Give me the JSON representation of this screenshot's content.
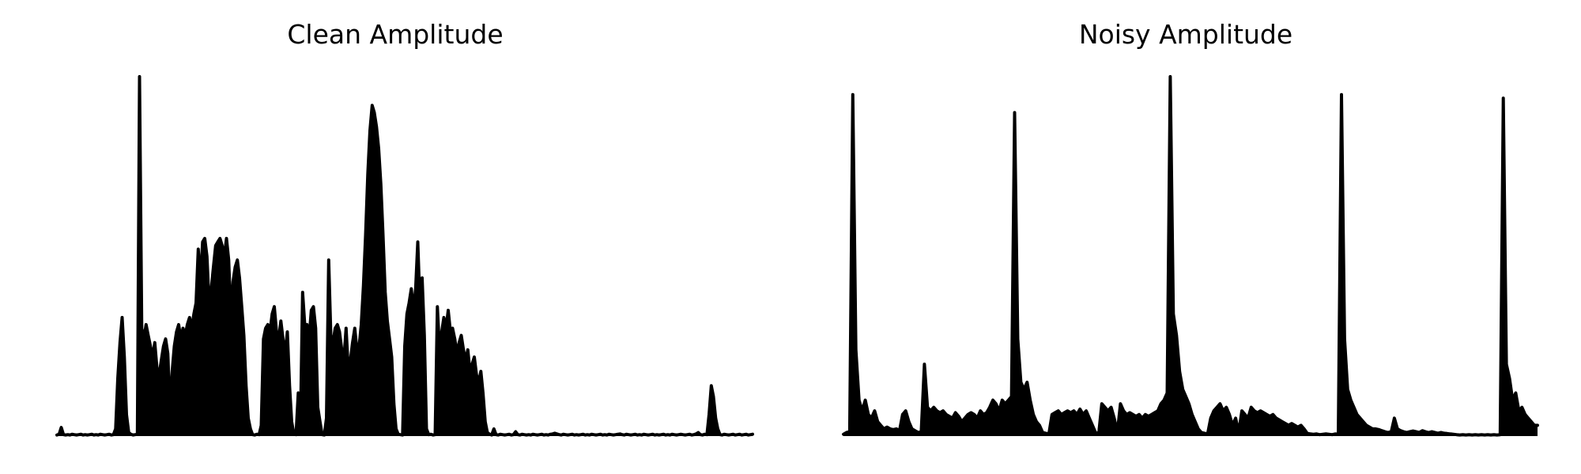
{
  "chart_data": [
    {
      "type": "line",
      "title": "Clean Amplitude",
      "xlabel": "",
      "ylabel": "",
      "axes_visible": false,
      "grid": false,
      "color": "#000000",
      "x_range": [
        0,
        340
      ],
      "ylim": [
        0,
        1.0
      ],
      "series": [
        {
          "name": "",
          "values": [
            0.003,
            0.005,
            0.024,
            0.004,
            0.003,
            0.004,
            0.003,
            0.005,
            0.004,
            0.003,
            0.004,
            0.005,
            0.003,
            0.004,
            0.003,
            0.004,
            0.005,
            0.003,
            0.004,
            0.003,
            0.005,
            0.004,
            0.003,
            0.004,
            0.005,
            0.003,
            0.004,
            0.02,
            0.16,
            0.26,
            0.33,
            0.22,
            0.06,
            0.01,
            0.005,
            0.003,
            0.004,
            0.005,
            1.0,
            0.3,
            0.27,
            0.31,
            0.28,
            0.25,
            0.22,
            0.26,
            0.19,
            0.17,
            0.21,
            0.25,
            0.27,
            0.23,
            0.07,
            0.18,
            0.25,
            0.29,
            0.31,
            0.27,
            0.3,
            0.28,
            0.31,
            0.33,
            0.3,
            0.34,
            0.37,
            0.52,
            0.43,
            0.54,
            0.55,
            0.5,
            0.37,
            0.41,
            0.47,
            0.53,
            0.54,
            0.55,
            0.53,
            0.5,
            0.55,
            0.49,
            0.33,
            0.43,
            0.47,
            0.49,
            0.44,
            0.36,
            0.28,
            0.14,
            0.05,
            0.02,
            0.004,
            0.003,
            0.005,
            0.004,
            0.03,
            0.27,
            0.3,
            0.31,
            0.29,
            0.34,
            0.36,
            0.29,
            0.27,
            0.32,
            0.27,
            0.23,
            0.29,
            0.14,
            0.04,
            0.005,
            0.004,
            0.12,
            0.02,
            0.4,
            0.31,
            0.31,
            0.27,
            0.35,
            0.36,
            0.3,
            0.08,
            0.04,
            0.004,
            0.003,
            0.05,
            0.49,
            0.28,
            0.26,
            0.3,
            0.31,
            0.29,
            0.24,
            0.21,
            0.3,
            0.19,
            0.21,
            0.26,
            0.3,
            0.24,
            0.25,
            0.31,
            0.42,
            0.56,
            0.73,
            0.85,
            0.92,
            0.9,
            0.86,
            0.8,
            0.7,
            0.56,
            0.4,
            0.32,
            0.27,
            0.22,
            0.09,
            0.02,
            0.005,
            0.004,
            0.003,
            0.25,
            0.34,
            0.37,
            0.41,
            0.35,
            0.41,
            0.54,
            0.36,
            0.44,
            0.28,
            0.02,
            0.004,
            0.005,
            0.003,
            0.004,
            0.36,
            0.24,
            0.29,
            0.33,
            0.3,
            0.35,
            0.29,
            0.3,
            0.27,
            0.23,
            0.26,
            0.28,
            0.24,
            0.21,
            0.24,
            0.18,
            0.2,
            0.22,
            0.17,
            0.15,
            0.18,
            0.12,
            0.04,
            0.01,
            0.005,
            0.003,
            0.02,
            0.004,
            0.003,
            0.005,
            0.004,
            0.003,
            0.004,
            0.005,
            0.003,
            0.004,
            0.012,
            0.004,
            0.003,
            0.005,
            0.004,
            0.003,
            0.004,
            0.003,
            0.005,
            0.004,
            0.003,
            0.004,
            0.005,
            0.003,
            0.004,
            0.003,
            0.005,
            0.006,
            0.008,
            0.006,
            0.004,
            0.003,
            0.005,
            0.004,
            0.003,
            0.004,
            0.005,
            0.003,
            0.004,
            0.003,
            0.004,
            0.005,
            0.003,
            0.004,
            0.003,
            0.005,
            0.004,
            0.003,
            0.004,
            0.005,
            0.003,
            0.004,
            0.003,
            0.005,
            0.004,
            0.003,
            0.004,
            0.005,
            0.006,
            0.004,
            0.003,
            0.005,
            0.004,
            0.003,
            0.004,
            0.005,
            0.003,
            0.004,
            0.003,
            0.005,
            0.004,
            0.003,
            0.004,
            0.005,
            0.003,
            0.004,
            0.003,
            0.004,
            0.005,
            0.003,
            0.004,
            0.003,
            0.005,
            0.004,
            0.003,
            0.004,
            0.005,
            0.004,
            0.003,
            0.004,
            0.005,
            0.003,
            0.004,
            0.006,
            0.01,
            0.004,
            0.003,
            0.005,
            0.004,
            0.06,
            0.14,
            0.11,
            0.05,
            0.02,
            0.004,
            0.003,
            0.005,
            0.004,
            0.003,
            0.004,
            0.005,
            0.003,
            0.004,
            0.005,
            0.003,
            0.004,
            0.005,
            0.003,
            0.004,
            0.005
          ]
        }
      ]
    },
    {
      "type": "line",
      "title": "Noisy Amplitude",
      "xlabel": "",
      "ylabel": "",
      "axes_visible": false,
      "grid": false,
      "color": "#000000",
      "x_range": [
        0,
        340
      ],
      "ylim": [
        0,
        1.0
      ],
      "series": [
        {
          "name": "",
          "values": [
            0.005,
            0.01,
            0.012,
            0.95,
            0.24,
            0.1,
            0.07,
            0.1,
            0.06,
            0.05,
            0.07,
            0.04,
            0.03,
            0.02,
            0.025,
            0.02,
            0.018,
            0.02,
            0.015,
            0.06,
            0.07,
            0.04,
            0.02,
            0.015,
            0.01,
            0.012,
            0.2,
            0.08,
            0.07,
            0.08,
            0.07,
            0.065,
            0.07,
            0.06,
            0.055,
            0.05,
            0.065,
            0.055,
            0.04,
            0.05,
            0.06,
            0.065,
            0.06,
            0.05,
            0.07,
            0.06,
            0.065,
            0.08,
            0.1,
            0.09,
            0.07,
            0.1,
            0.09,
            0.1,
            0.11,
            0.9,
            0.27,
            0.15,
            0.13,
            0.15,
            0.1,
            0.06,
            0.04,
            0.03,
            0.01,
            0.008,
            0.006,
            0.06,
            0.065,
            0.07,
            0.06,
            0.065,
            0.07,
            0.065,
            0.07,
            0.06,
            0.075,
            0.06,
            0.07,
            0.05,
            0.03,
            0.01,
            0.006,
            0.09,
            0.08,
            0.07,
            0.08,
            0.05,
            0.01,
            0.09,
            0.07,
            0.06,
            0.065,
            0.06,
            0.055,
            0.06,
            0.05,
            0.06,
            0.055,
            0.06,
            0.065,
            0.07,
            0.09,
            0.1,
            0.12,
            1.0,
            0.34,
            0.28,
            0.18,
            0.13,
            0.11,
            0.09,
            0.06,
            0.04,
            0.02,
            0.01,
            0.008,
            0.006,
            0.05,
            0.07,
            0.08,
            0.09,
            0.07,
            0.08,
            0.06,
            0.03,
            0.05,
            0.01,
            0.07,
            0.06,
            0.05,
            0.08,
            0.07,
            0.065,
            0.07,
            0.065,
            0.06,
            0.055,
            0.06,
            0.05,
            0.045,
            0.04,
            0.035,
            0.03,
            0.035,
            0.03,
            0.025,
            0.03,
            0.02,
            0.008,
            0.006,
            0.005,
            0.006,
            0.004,
            0.005,
            0.006,
            0.005,
            0.004,
            0.006,
            0.005,
            0.95,
            0.27,
            0.13,
            0.1,
            0.08,
            0.06,
            0.05,
            0.04,
            0.03,
            0.025,
            0.02,
            0.02,
            0.018,
            0.015,
            0.012,
            0.01,
            0.012,
            0.05,
            0.02,
            0.015,
            0.012,
            0.01,
            0.012,
            0.014,
            0.012,
            0.01,
            0.015,
            0.012,
            0.01,
            0.012,
            0.01,
            0.008,
            0.01,
            0.008,
            0.007,
            0.006,
            0.005,
            0.004,
            0.003,
            0.004,
            0.003,
            0.004,
            0.003,
            0.004,
            0.003,
            0.004,
            0.003,
            0.004,
            0.003,
            0.004,
            0.003,
            0.004,
            0.94,
            0.2,
            0.16,
            0.1,
            0.12,
            0.07,
            0.08,
            0.06,
            0.05,
            0.04,
            0.03,
            0.03
          ]
        }
      ]
    }
  ]
}
